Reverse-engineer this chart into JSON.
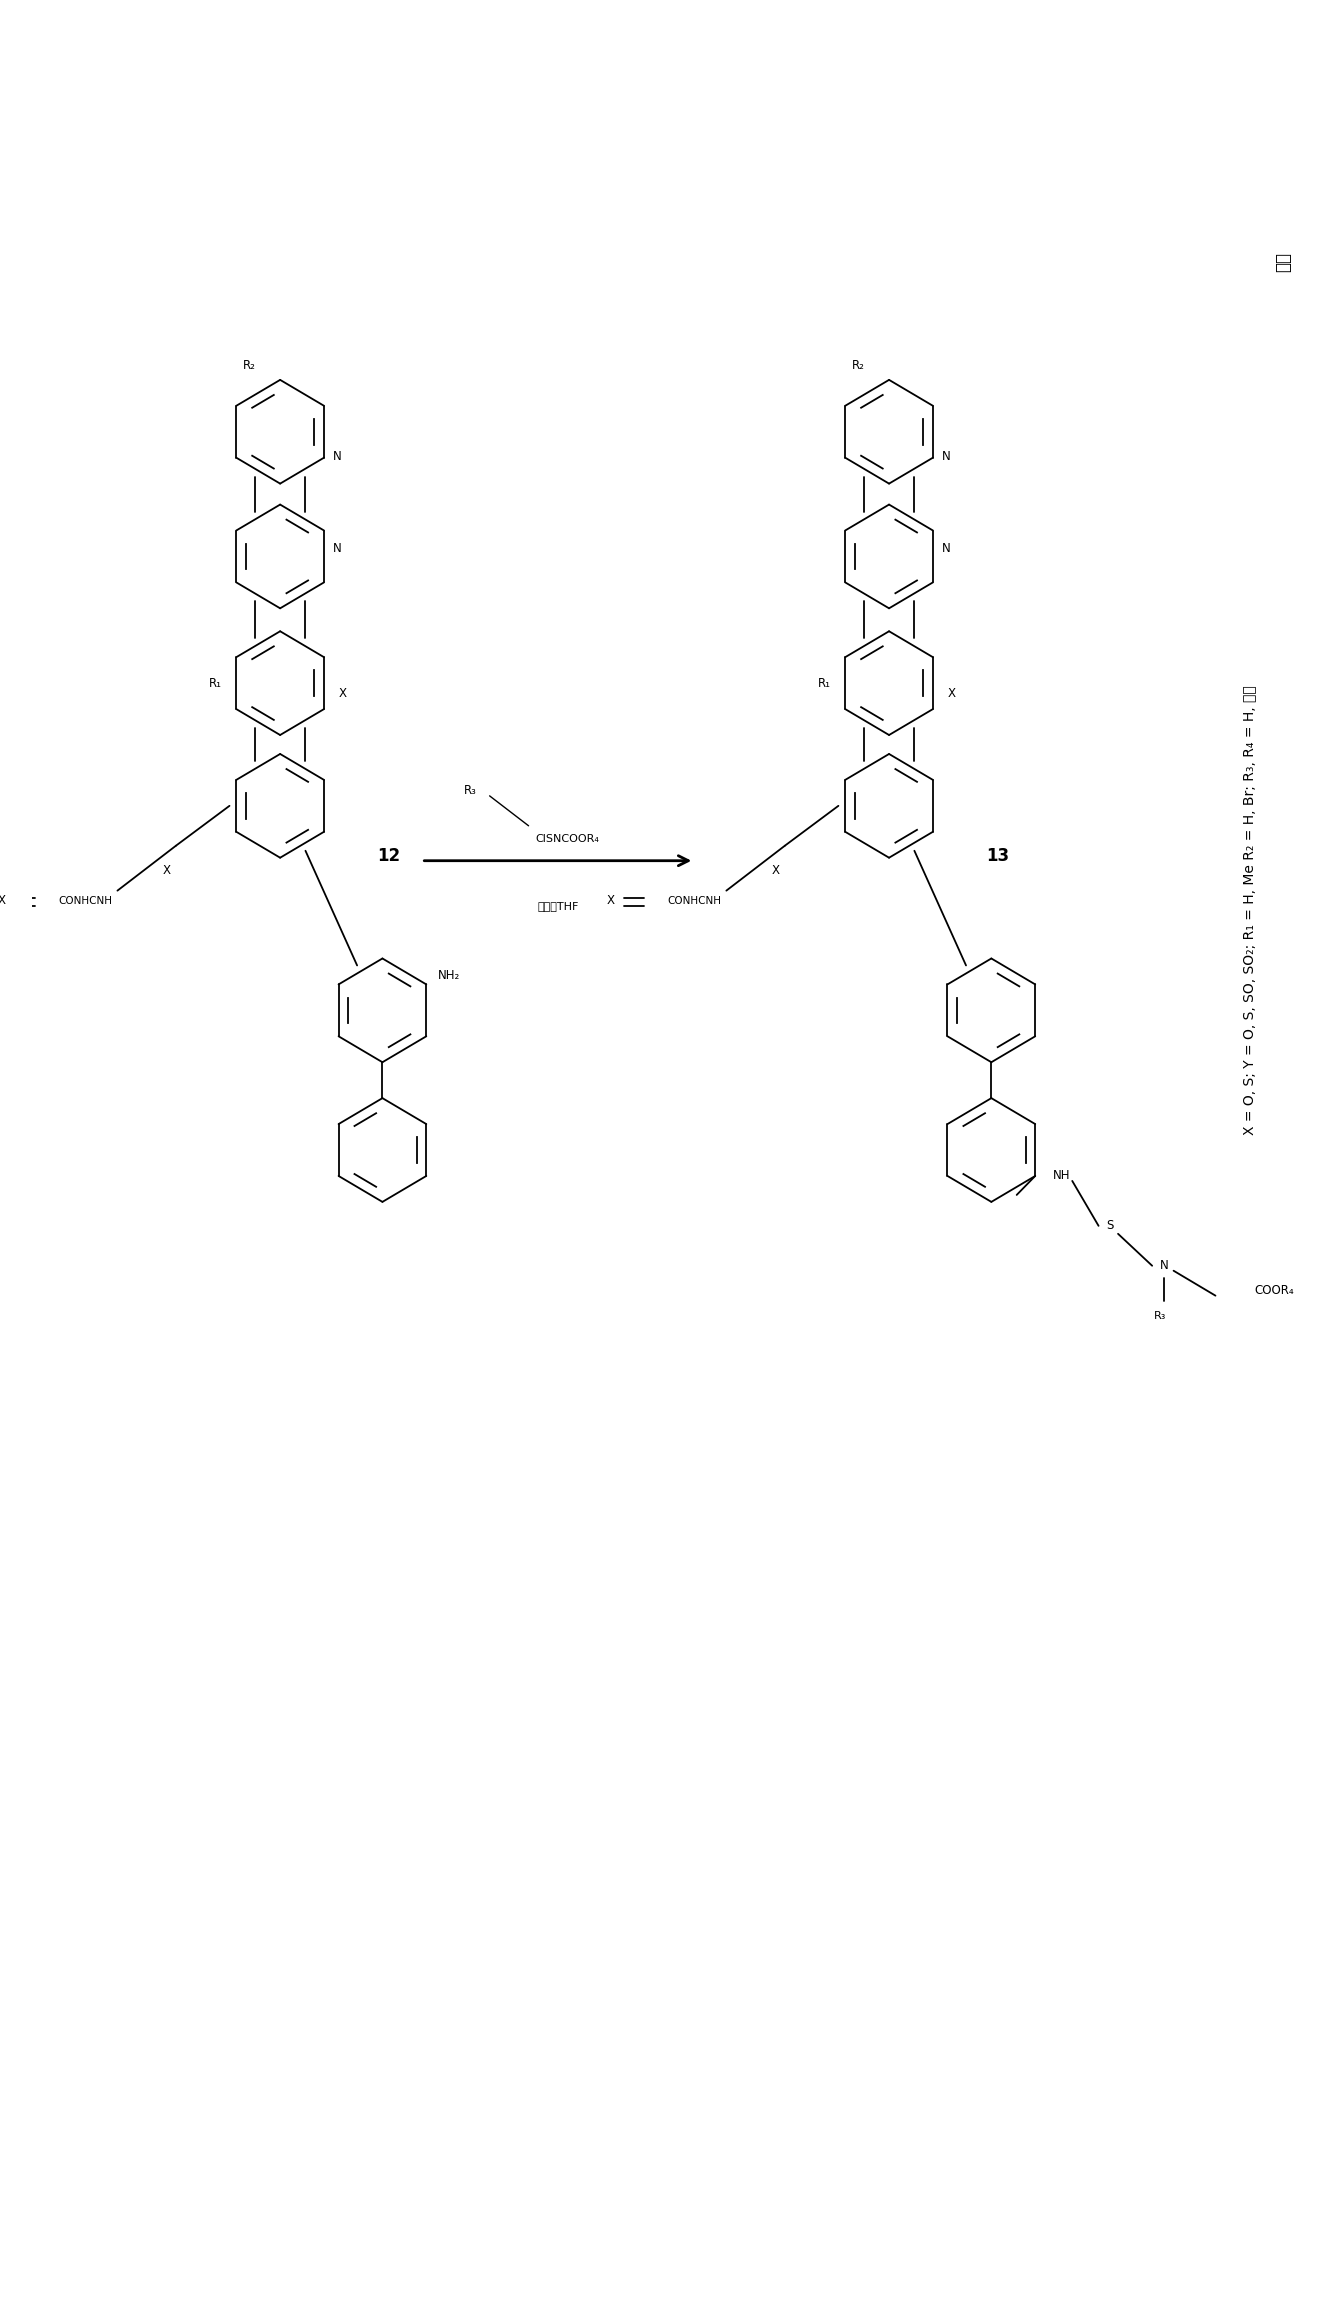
{
  "background_color": "#ffffff",
  "figure_width": 13.4,
  "figure_height": 23.1,
  "lw": 1.3,
  "ring_r": 0.52,
  "compound12_label": "12",
  "compound13_label": "13",
  "reagent_above": "R₃",
  "reagent_middle": "ClSNCOOR₄",
  "reagent_below": "吠吠，THF",
  "legend_text": "X = O, S; Y = O, S, SO, SO₂; R₁ = H, Me R₂ = H, Br; R₃, R₄ = H, 烧基",
  "legend_top": "烧基"
}
